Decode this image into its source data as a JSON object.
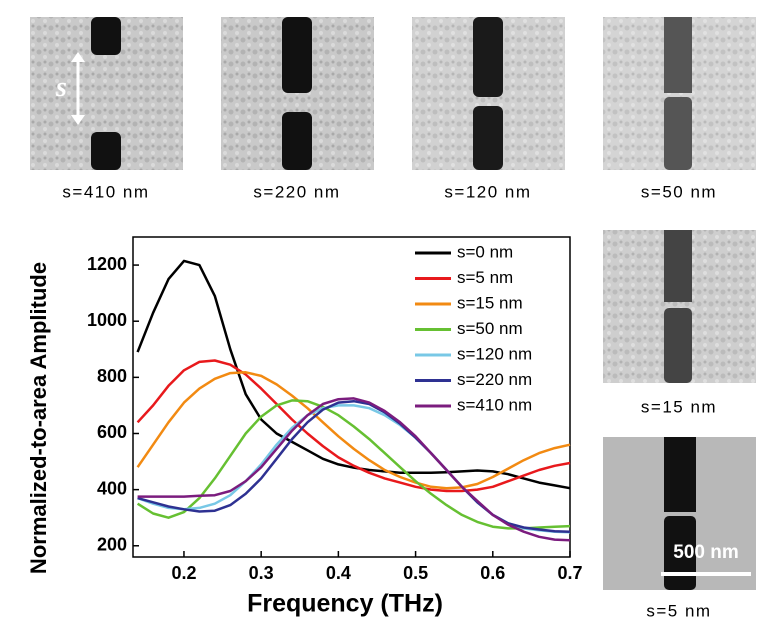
{
  "chart_data": {
    "type": "line",
    "xlabel": "Frequency (THz)",
    "ylabel": "Normalized-to-area Amplitude",
    "x": [
      0.14,
      0.16,
      0.18,
      0.2,
      0.22,
      0.24,
      0.26,
      0.28,
      0.3,
      0.32,
      0.34,
      0.36,
      0.38,
      0.4,
      0.42,
      0.44,
      0.46,
      0.48,
      0.5,
      0.52,
      0.54,
      0.56,
      0.58,
      0.6,
      0.62,
      0.64,
      0.66,
      0.68,
      0.7
    ],
    "xlim": [
      0.134,
      0.7
    ],
    "xticks": [
      0.2,
      0.3,
      0.4,
      0.5,
      0.6,
      0.7
    ],
    "ylim": [
      160,
      1300
    ],
    "yticks": [
      200,
      400,
      600,
      800,
      1000,
      1200
    ],
    "legend": "top-right",
    "series": [
      {
        "name": "s=0 nm",
        "color": "#000000",
        "values": [
          890,
          1030,
          1150,
          1215,
          1200,
          1090,
          900,
          740,
          650,
          600,
          570,
          540,
          510,
          490,
          478,
          470,
          465,
          460,
          460,
          460,
          462,
          465,
          468,
          465,
          455,
          440,
          425,
          415,
          405
        ]
      },
      {
        "name": "s=5 nm",
        "color": "#e8191c",
        "values": [
          640,
          700,
          770,
          825,
          855,
          860,
          845,
          810,
          760,
          705,
          650,
          600,
          555,
          515,
          485,
          460,
          440,
          425,
          410,
          400,
          395,
          395,
          400,
          410,
          430,
          450,
          470,
          485,
          495
        ]
      },
      {
        "name": "s=15 nm",
        "color": "#f28a12",
        "values": [
          480,
          560,
          640,
          710,
          760,
          795,
          815,
          818,
          805,
          775,
          735,
          690,
          640,
          590,
          545,
          505,
          470,
          445,
          425,
          410,
          405,
          408,
          420,
          445,
          475,
          505,
          530,
          548,
          560
        ]
      },
      {
        "name": "s=50 nm",
        "color": "#66c032",
        "values": [
          350,
          315,
          300,
          320,
          370,
          440,
          520,
          600,
          660,
          700,
          718,
          715,
          695,
          665,
          625,
          580,
          530,
          480,
          430,
          385,
          345,
          310,
          285,
          268,
          262,
          262,
          265,
          268,
          270
        ]
      },
      {
        "name": "s=120 nm",
        "color": "#78c8e6",
        "values": [
          370,
          350,
          335,
          330,
          335,
          350,
          380,
          430,
          490,
          560,
          620,
          665,
          690,
          700,
          700,
          690,
          665,
          630,
          585,
          530,
          470,
          410,
          355,
          310,
          280,
          262,
          255,
          250,
          248
        ]
      },
      {
        "name": "s=220 nm",
        "color": "#2e3192",
        "values": [
          370,
          355,
          340,
          330,
          322,
          325,
          345,
          385,
          440,
          510,
          580,
          640,
          685,
          710,
          715,
          705,
          675,
          635,
          585,
          530,
          470,
          410,
          355,
          310,
          280,
          265,
          258,
          252,
          250
        ]
      },
      {
        "name": "s=410 nm",
        "color": "#7b1c7e",
        "values": [
          375,
          375,
          375,
          375,
          378,
          380,
          395,
          430,
          480,
          545,
          610,
          665,
          705,
          722,
          725,
          710,
          680,
          640,
          590,
          530,
          470,
          410,
          360,
          310,
          275,
          250,
          232,
          222,
          220
        ]
      }
    ]
  },
  "images": [
    {
      "label": "s=410 nm"
    },
    {
      "label": "s=220 nm"
    },
    {
      "label": "s=120 nm"
    },
    {
      "label": "s=50 nm"
    },
    {
      "label": "s=15 nm"
    },
    {
      "label": "s=5 nm"
    }
  ],
  "gap_symbol": "s",
  "scale_bar": "500 nm"
}
